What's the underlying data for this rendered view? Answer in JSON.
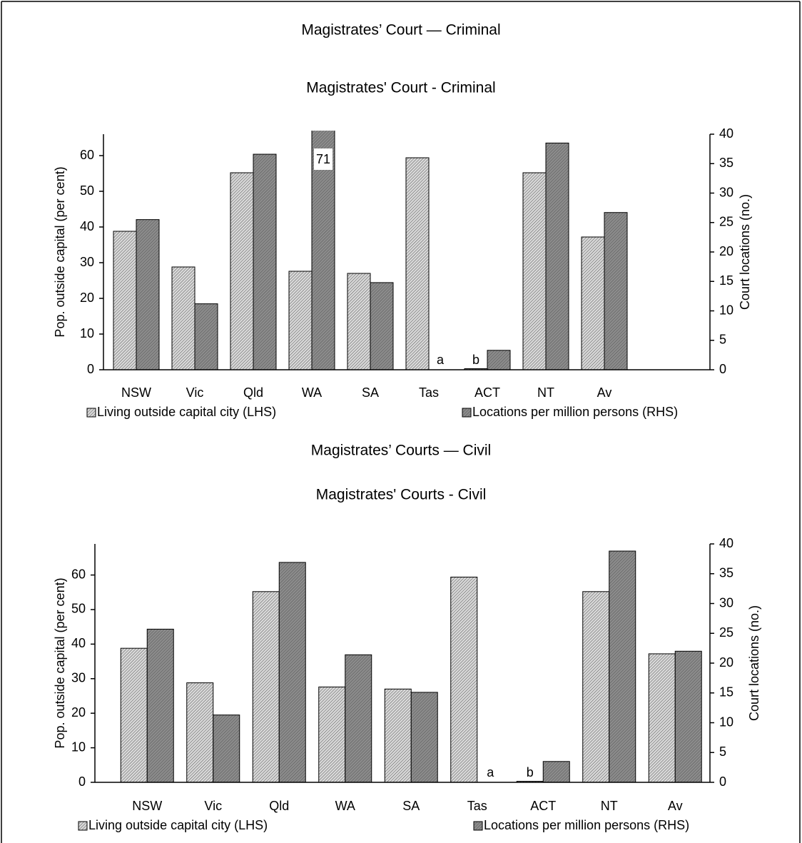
{
  "chart_data": [
    {
      "type": "bar",
      "title": "Magistrates’ Court — Criminal",
      "subtitle": "Magistrates' Court - Criminal",
      "categories": [
        "NSW",
        "Vic",
        "Qld",
        "WA",
        "SA",
        "Tas",
        "ACT",
        "NT",
        "Av"
      ],
      "ylabel": "Pop. outside capital (per cent)",
      "y2label": "Court locations (no.)",
      "ylim": [
        0,
        66
      ],
      "yticks": [
        0,
        10,
        20,
        30,
        40,
        50,
        60
      ],
      "y2lim": [
        0,
        40
      ],
      "y2ticks": [
        0,
        5,
        10,
        15,
        20,
        25,
        30,
        35,
        40
      ],
      "legend": "bottom",
      "series": [
        {
          "name": "Living outside capital city (LHS)",
          "color": "#d9d9d9",
          "values": [
            38.8,
            28.8,
            55.2,
            27.6,
            27,
            59.4,
            0.3,
            55.2,
            37.2
          ],
          "value_labels": [
            null,
            null,
            null,
            null,
            null,
            null,
            "b",
            null,
            null
          ]
        },
        {
          "name": "Locations per million persons (RHS)",
          "color": "#8c8c8c",
          "axis": "y2",
          "values": [
            25.5,
            11.2,
            36.6,
            71,
            14.8,
            null,
            3.3,
            38.5,
            26.7
          ],
          "value_labels": [
            null,
            null,
            null,
            "71",
            null,
            "a",
            null,
            null,
            null
          ]
        }
      ]
    },
    {
      "type": "bar",
      "title": "Magistrates’ Courts — Civil",
      "subtitle": "Magistrates' Courts - Civil",
      "categories": [
        "NSW",
        "Vic",
        "Qld",
        "WA",
        "SA",
        "Tas",
        "ACT",
        "NT",
        "Av"
      ],
      "ylabel": "Pop. outside capital (per cent)",
      "y2label": "Court locations (no.)",
      "ylim": [
        0,
        69
      ],
      "yticks": [
        0,
        10,
        20,
        30,
        40,
        50,
        60
      ],
      "y2lim": [
        0,
        40
      ],
      "y2ticks": [
        0,
        5,
        10,
        15,
        20,
        25,
        30,
        35,
        40
      ],
      "legend": "bottom",
      "series": [
        {
          "name": "Living outside capital city (LHS)",
          "color": "#d9d9d9",
          "values": [
            38.8,
            28.8,
            55.2,
            27.6,
            27,
            59.4,
            0.3,
            55.2,
            37.2
          ],
          "value_labels": [
            null,
            null,
            null,
            null,
            null,
            null,
            "b",
            null,
            null
          ]
        },
        {
          "name": "Locations per million persons (RHS)",
          "color": "#8c8c8c",
          "axis": "y2",
          "values": [
            25.7,
            11.3,
            36.9,
            21.4,
            15.1,
            null,
            3.5,
            38.8,
            22
          ],
          "value_labels": [
            null,
            null,
            null,
            null,
            null,
            "a",
            null,
            null,
            null
          ]
        }
      ]
    }
  ]
}
